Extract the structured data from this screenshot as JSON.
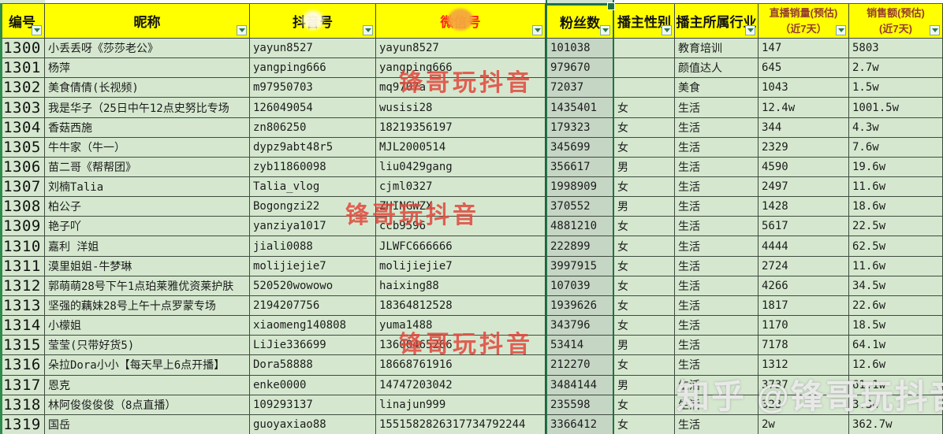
{
  "table": {
    "headers": [
      {
        "label": "编号"
      },
      {
        "label": "昵称"
      },
      {
        "label": "抖音号"
      },
      {
        "label": "微信号"
      },
      {
        "label": "粉丝数"
      },
      {
        "label": "播主性别"
      },
      {
        "label": "播主所属行业"
      },
      {
        "label": "直播销量(预估)",
        "label2": "（近7天）"
      },
      {
        "label": "销售额(预估)",
        "label2": "(近7天)"
      }
    ],
    "rows": [
      {
        "id": "1300",
        "nickname": "小丢丢呀《莎莎老公》",
        "douyin": "yayun8527",
        "weixin": "yayun8527",
        "fans": "101038",
        "gender": "",
        "industry": "教育培训",
        "live_sales": "147",
        "revenue": "5803"
      },
      {
        "id": "1301",
        "nickname": "杨萍",
        "douyin": "yangping666",
        "weixin": "yangping666",
        "fans": "979670",
        "gender": "",
        "industry": "颜值达人",
        "live_sales": "645",
        "revenue": "2.7w"
      },
      {
        "id": "1302",
        "nickname": "美食倩倩(长视频)",
        "douyin": "m97950703",
        "weixin": "mq9707a",
        "fans": "72037",
        "gender": "",
        "industry": "美食",
        "live_sales": "1043",
        "revenue": "1.5w"
      },
      {
        "id": "1303",
        "nickname": "我是华子（25日中午12点史努比专场",
        "douyin": "126049054",
        "weixin": "wusisi28",
        "fans": "1435401",
        "gender": "女",
        "industry": "生活",
        "live_sales": "12.4w",
        "revenue": "1001.5w"
      },
      {
        "id": "1304",
        "nickname": "香菇西施",
        "douyin": "zn806250",
        "weixin": "18219356197",
        "fans": "179323",
        "gender": "女",
        "industry": "生活",
        "live_sales": "344",
        "revenue": "4.3w"
      },
      {
        "id": "1305",
        "nickname": "牛牛家（牛一）",
        "douyin": "dypz9abt48r5",
        "weixin": "MJL2000514",
        "fans": "345699",
        "gender": "女",
        "industry": "生活",
        "live_sales": "2329",
        "revenue": "7.6w"
      },
      {
        "id": "1306",
        "nickname": "苗二哥《帮帮团》",
        "douyin": "zyb11860098",
        "weixin": "liu0429gang",
        "fans": "356617",
        "gender": "男",
        "industry": "生活",
        "live_sales": "4590",
        "revenue": "19.6w"
      },
      {
        "id": "1307",
        "nickname": "刘楠Talia",
        "douyin": "Talia_vlog",
        "weixin": "cjml0327",
        "fans": "1998909",
        "gender": "女",
        "industry": "生活",
        "live_sales": "2497",
        "revenue": "11.6w"
      },
      {
        "id": "1308",
        "nickname": "柏公子",
        "douyin": "Bogongzi22",
        "weixin": "ZHINGWZX",
        "fans": "370552",
        "gender": "男",
        "industry": "生活",
        "live_sales": "1428",
        "revenue": "18.6w"
      },
      {
        "id": "1309",
        "nickname": "艳子吖",
        "douyin": "yanziya1017",
        "weixin": "ccb9596",
        "fans": "4881210",
        "gender": "女",
        "industry": "生活",
        "live_sales": "5617",
        "revenue": "22.5w"
      },
      {
        "id": "1310",
        "nickname": "嘉利 洋姐",
        "douyin": "jiali0088",
        "weixin": "JLWFC666666",
        "fans": "222899",
        "gender": "女",
        "industry": "生活",
        "live_sales": "4444",
        "revenue": "62.5w"
      },
      {
        "id": "1311",
        "nickname": "漠里姐姐-牛梦琳",
        "douyin": "molijiejie7",
        "weixin": "molijiejie7",
        "fans": "3997915",
        "gender": "女",
        "industry": "生活",
        "live_sales": "2724",
        "revenue": "11.6w"
      },
      {
        "id": "1312",
        "nickname": "郭萌萌28号下午1点珀莱雅优资莱护肤",
        "douyin": "520520wowowo",
        "weixin": "haixing88",
        "fans": "107039",
        "gender": "女",
        "industry": "生活",
        "live_sales": "4266",
        "revenue": "34.5w"
      },
      {
        "id": "1313",
        "nickname": "坚强的藕妹28号上午十点罗蒙专场",
        "douyin": "2194207756",
        "weixin": "18364812528",
        "fans": "1939626",
        "gender": "女",
        "industry": "生活",
        "live_sales": "1817",
        "revenue": "22.6w"
      },
      {
        "id": "1314",
        "nickname": "小檬姐",
        "douyin": "xiaomeng140808",
        "weixin": "yuma1488",
        "fans": "343796",
        "gender": "女",
        "industry": "生活",
        "live_sales": "1170",
        "revenue": "18.5w"
      },
      {
        "id": "1315",
        "nickname": "莹莹(只带好货5)",
        "douyin": "LiJie336699",
        "weixin": "13600465266",
        "fans": "53414",
        "gender": "男",
        "industry": "生活",
        "live_sales": "7178",
        "revenue": "64.1w"
      },
      {
        "id": "1316",
        "nickname": "朵拉Dora小小【每天早上6点开播】",
        "douyin": "Dora58888",
        "weixin": "18668761916",
        "fans": "212270",
        "gender": "女",
        "industry": "生活",
        "live_sales": "1312",
        "revenue": "12.6w"
      },
      {
        "id": "1317",
        "nickname": "恩克",
        "douyin": "enke0000",
        "weixin": "14747203042",
        "fans": "3484144",
        "gender": "男",
        "industry": "生活",
        "live_sales": "3737",
        "revenue": "61.1w"
      },
      {
        "id": "1318",
        "nickname": "林阿俊俊俊俊（8点直播）",
        "douyin": "109293137",
        "weixin": "linajun999",
        "fans": "235598",
        "gender": "女",
        "industry": "生活",
        "live_sales": "323",
        "revenue": "3.3w"
      },
      {
        "id": "1319",
        "nickname": "国岳",
        "douyin": "guoyaxiao88",
        "weixin": "1551582826317734792244",
        "fans": "3366412",
        "gender": "女",
        "industry": "生活",
        "live_sales": "2w",
        "revenue": "362.7w"
      }
    ]
  },
  "selection": {
    "column": "粉丝数"
  },
  "watermarks": {
    "red_text": "锋哥玩抖音",
    "zhihu_text": "知乎 @锋哥玩抖音"
  },
  "colors": {
    "header_bg": "#ffff00",
    "cell_bg": "#d5e8cf",
    "selected_col_bg": "#c6d6c5",
    "selection_green": "#1f7246",
    "weixin_header_red": "#ff1e1e",
    "sales_header_red": "#943a31",
    "watermark_red": "#e0463c"
  }
}
